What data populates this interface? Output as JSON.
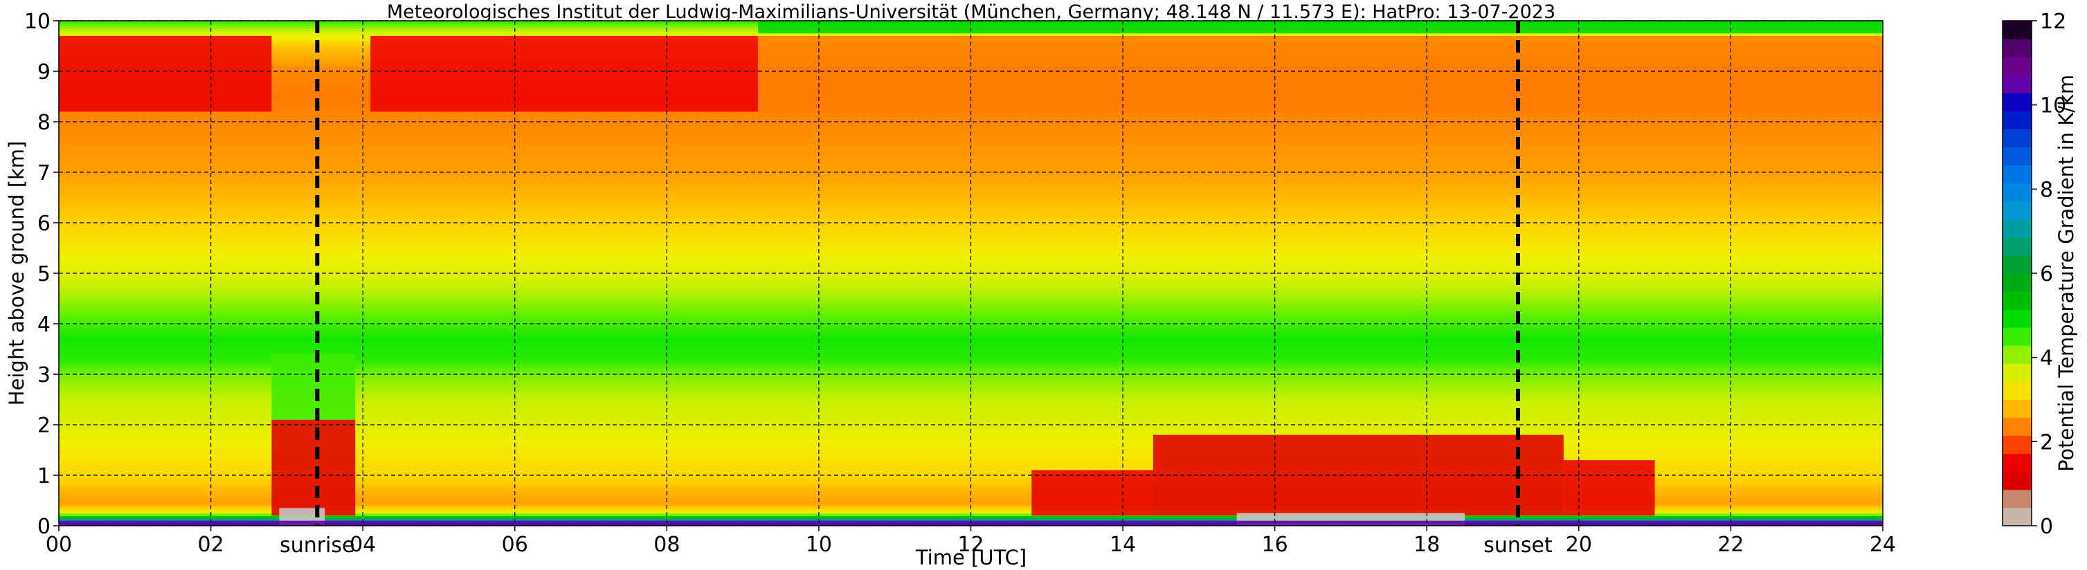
{
  "chart_data": {
    "type": "heatmap",
    "title": "Meteorologisches Institut der Ludwig-Maximilians-Universität (München, Germany; 48.148 N / 11.573 E):    HatPro: 13-07-2023",
    "xlabel": "Time [UTC]",
    "ylabel": "Height above ground [km]",
    "colorbar_label": "Potential Temperature Gradient in K/km",
    "xlim": [
      0,
      24
    ],
    "ylim": [
      0,
      10
    ],
    "x_ticks": [
      0,
      2,
      4,
      6,
      8,
      10,
      12,
      14,
      16,
      18,
      20,
      22,
      24
    ],
    "x_tick_labels": [
      "00",
      "02",
      "04",
      "06",
      "08",
      "10",
      "12",
      "14",
      "16",
      "18",
      "20",
      "22",
      "24"
    ],
    "y_ticks": [
      0,
      1,
      2,
      3,
      4,
      5,
      6,
      7,
      8,
      9,
      10
    ],
    "y_tick_labels": [
      "0",
      "1",
      "2",
      "3",
      "4",
      "5",
      "6",
      "7",
      "8",
      "9",
      "10"
    ],
    "colorbar_range": [
      0,
      12
    ],
    "colorbar_ticks": [
      0,
      2,
      4,
      6,
      8,
      10,
      12
    ],
    "colorbar_tick_labels": [
      "0",
      "2",
      "4",
      "6",
      "8",
      "10",
      "12"
    ],
    "grid": true,
    "markers": [
      {
        "label": "sunrise",
        "x": 3.4
      },
      {
        "label": "sunset",
        "x": 19.2
      }
    ],
    "colorscale": [
      {
        "value": 0.0,
        "color": "#c8c8c8"
      },
      {
        "value": 0.6,
        "color": "#c89678"
      },
      {
        "value": 1.0,
        "color": "#d70000"
      },
      {
        "value": 1.6,
        "color": "#f00000"
      },
      {
        "value": 2.1,
        "color": "#ff6400"
      },
      {
        "value": 2.6,
        "color": "#ffa000"
      },
      {
        "value": 3.0,
        "color": "#ffd200"
      },
      {
        "value": 3.4,
        "color": "#f0f000"
      },
      {
        "value": 3.8,
        "color": "#c8f000"
      },
      {
        "value": 4.3,
        "color": "#64f000"
      },
      {
        "value": 4.8,
        "color": "#00e600"
      },
      {
        "value": 5.5,
        "color": "#00b400"
      },
      {
        "value": 6.2,
        "color": "#00a032"
      },
      {
        "value": 7.0,
        "color": "#00a0a0"
      },
      {
        "value": 7.6,
        "color": "#0096dc"
      },
      {
        "value": 8.3,
        "color": "#0078e6"
      },
      {
        "value": 9.2,
        "color": "#0040d2"
      },
      {
        "value": 10.0,
        "color": "#0000c8"
      },
      {
        "value": 10.6,
        "color": "#7800a0"
      },
      {
        "value": 11.3,
        "color": "#5a0078"
      },
      {
        "value": 12.0,
        "color": "#000000"
      }
    ],
    "background_profile": {
      "heights_km": [
        0.0,
        0.05,
        0.12,
        0.2,
        0.3,
        0.45,
        0.7,
        1.0,
        1.5,
        2.0,
        2.5,
        3.0,
        3.3,
        3.7,
        4.1,
        4.5,
        5.0,
        5.5,
        6.0,
        6.5,
        7.0,
        7.5,
        8.0,
        8.5,
        9.0,
        9.5,
        9.75,
        10.0
      ],
      "values": [
        10.5,
        9.0,
        7.0,
        4.5,
        3.2,
        2.6,
        2.8,
        3.1,
        3.3,
        3.6,
        3.8,
        4.2,
        4.6,
        4.7,
        4.4,
        4.0,
        3.6,
        3.3,
        3.0,
        2.8,
        2.6,
        2.5,
        2.4,
        2.3,
        2.4,
        2.9,
        3.6,
        4.6
      ]
    },
    "features": [
      {
        "x": [
          2.8,
          3.9
        ],
        "y": [
          0.2,
          2.1
        ],
        "value": 1.2
      },
      {
        "x": [
          2.8,
          3.9
        ],
        "y": [
          2.1,
          3.4
        ],
        "value": 4.5
      },
      {
        "x": [
          2.9,
          3.5
        ],
        "y": [
          0.0,
          0.35
        ],
        "value": 0.0
      },
      {
        "x": [
          0.0,
          2.8
        ],
        "y": [
          8.2,
          9.7
        ],
        "value": 1.5
      },
      {
        "x": [
          4.1,
          9.2
        ],
        "y": [
          8.2,
          9.7
        ],
        "value": 1.6
      },
      {
        "x": [
          9.2,
          24.0
        ],
        "y": [
          8.2,
          9.7
        ],
        "value": 2.3
      },
      {
        "x": [
          9.2,
          24.0
        ],
        "y": [
          9.75,
          10.0
        ],
        "value": 5.0
      },
      {
        "x": [
          12.8,
          14.4
        ],
        "y": [
          0.2,
          1.1
        ],
        "value": 1.4
      },
      {
        "x": [
          14.4,
          19.8
        ],
        "y": [
          0.2,
          1.8
        ],
        "value": 1.2
      },
      {
        "x": [
          19.8,
          21.0
        ],
        "y": [
          0.2,
          1.3
        ],
        "value": 1.4
      },
      {
        "x": [
          15.5,
          18.5
        ],
        "y": [
          0.0,
          0.25
        ],
        "value": 0.0
      },
      {
        "x": [
          0.0,
          24.0
        ],
        "y": [
          0.0,
          0.1
        ],
        "value": 10.5
      }
    ]
  }
}
